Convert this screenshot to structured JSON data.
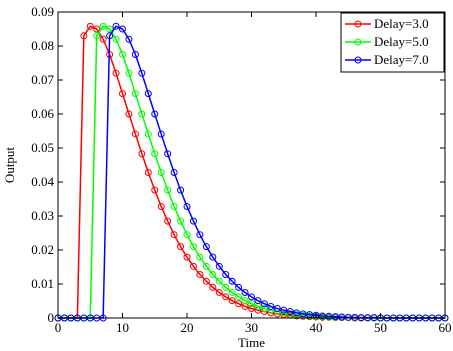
{
  "chart_data": {
    "type": "line",
    "title": "",
    "xlabel": "Time",
    "ylabel": "Output",
    "xlim": [
      0,
      60
    ],
    "ylim": [
      0,
      0.09
    ],
    "xticks": [
      0,
      10,
      20,
      30,
      40,
      50,
      60
    ],
    "yticks": [
      0,
      0.01,
      0.02,
      0.03,
      0.04,
      0.05,
      0.06,
      0.07,
      0.08,
      0.09
    ],
    "grid": false,
    "legend_position": "top-right",
    "marker": "open-circle",
    "colors": [
      "#ff0000",
      "#00ff00",
      "#0000ff"
    ],
    "series": [
      {
        "name": "Delay=3.0",
        "color": "#ff0000",
        "x": [
          0,
          1,
          2,
          3,
          4,
          5,
          6,
          7,
          8,
          9,
          10,
          11,
          12,
          13,
          14,
          15,
          16,
          17,
          18,
          19,
          20,
          21,
          22,
          23,
          24,
          25,
          26,
          27,
          28,
          29,
          30,
          31,
          32,
          33,
          34,
          35,
          36,
          37,
          38,
          39,
          40,
          41,
          42,
          43,
          44,
          45,
          46,
          47,
          48,
          49,
          50,
          51,
          52,
          53,
          54,
          55,
          56,
          57,
          58,
          59,
          60
        ],
        "y": [
          0,
          0,
          0,
          0,
          0.083,
          0.0858,
          0.085,
          0.082,
          0.0775,
          0.072,
          0.066,
          0.06,
          0.0541,
          0.0483,
          0.0428,
          0.0376,
          0.0328,
          0.0285,
          0.0245,
          0.021,
          0.0179,
          0.0152,
          0.0128,
          0.0108,
          0.009,
          0.0075,
          0.0062,
          0.0051,
          0.0042,
          0.0034,
          0.0028,
          0.0023,
          0.0019,
          0.0015,
          0.0012,
          0.001,
          0.0008,
          0.0006,
          0.0005,
          0.0004,
          0.0003,
          0.0002,
          0.0002,
          0.0001,
          0.0001,
          0.0001,
          0,
          0,
          0,
          0,
          0,
          0,
          0,
          0,
          0,
          0,
          0,
          0,
          0,
          0,
          0
        ]
      },
      {
        "name": "Delay=5.0",
        "color": "#00ff00",
        "x": [
          0,
          1,
          2,
          3,
          4,
          5,
          6,
          7,
          8,
          9,
          10,
          11,
          12,
          13,
          14,
          15,
          16,
          17,
          18,
          19,
          20,
          21,
          22,
          23,
          24,
          25,
          26,
          27,
          28,
          29,
          30,
          31,
          32,
          33,
          34,
          35,
          36,
          37,
          38,
          39,
          40,
          41,
          42,
          43,
          44,
          45,
          46,
          47,
          48,
          49,
          50,
          51,
          52,
          53,
          54,
          55,
          56,
          57,
          58,
          59,
          60
        ],
        "y": [
          0,
          0,
          0,
          0,
          0,
          0,
          0.083,
          0.0858,
          0.085,
          0.082,
          0.0775,
          0.072,
          0.066,
          0.06,
          0.0541,
          0.0483,
          0.0428,
          0.0376,
          0.0328,
          0.0285,
          0.0245,
          0.021,
          0.0179,
          0.0152,
          0.0128,
          0.0108,
          0.009,
          0.0075,
          0.0062,
          0.0051,
          0.0042,
          0.0034,
          0.0028,
          0.0023,
          0.0019,
          0.0015,
          0.0012,
          0.001,
          0.0008,
          0.0006,
          0.0005,
          0.0004,
          0.0003,
          0.0002,
          0.0002,
          0.0001,
          0.0001,
          0.0001,
          0,
          0,
          0,
          0,
          0,
          0,
          0,
          0,
          0,
          0,
          0,
          0,
          0
        ]
      },
      {
        "name": "Delay=7.0",
        "color": "#0000ff",
        "x": [
          0,
          1,
          2,
          3,
          4,
          5,
          6,
          7,
          8,
          9,
          10,
          11,
          12,
          13,
          14,
          15,
          16,
          17,
          18,
          19,
          20,
          21,
          22,
          23,
          24,
          25,
          26,
          27,
          28,
          29,
          30,
          31,
          32,
          33,
          34,
          35,
          36,
          37,
          38,
          39,
          40,
          41,
          42,
          43,
          44,
          45,
          46,
          47,
          48,
          49,
          50,
          51,
          52,
          53,
          54,
          55,
          56,
          57,
          58,
          59,
          60
        ],
        "y": [
          0,
          0,
          0,
          0,
          0,
          0,
          0,
          0,
          0.083,
          0.0858,
          0.085,
          0.082,
          0.0775,
          0.072,
          0.066,
          0.06,
          0.0541,
          0.0483,
          0.0428,
          0.0376,
          0.0328,
          0.0285,
          0.0245,
          0.021,
          0.0179,
          0.0152,
          0.0128,
          0.0108,
          0.009,
          0.0075,
          0.0062,
          0.0051,
          0.0042,
          0.0034,
          0.0028,
          0.0023,
          0.0019,
          0.0015,
          0.0012,
          0.001,
          0.0008,
          0.0006,
          0.0005,
          0.0004,
          0.0003,
          0.0002,
          0.0002,
          0.0001,
          0.0001,
          0.0001,
          0,
          0,
          0,
          0,
          0,
          0,
          0,
          0,
          0,
          0,
          0
        ]
      }
    ],
    "x_tick_labels": [
      "0",
      "10",
      "20",
      "30",
      "40",
      "50",
      "60"
    ],
    "y_tick_labels": [
      "0",
      "0.01",
      "0.02",
      "0.03",
      "0.04",
      "0.05",
      "0.06",
      "0.07",
      "0.08",
      "0.09"
    ]
  }
}
